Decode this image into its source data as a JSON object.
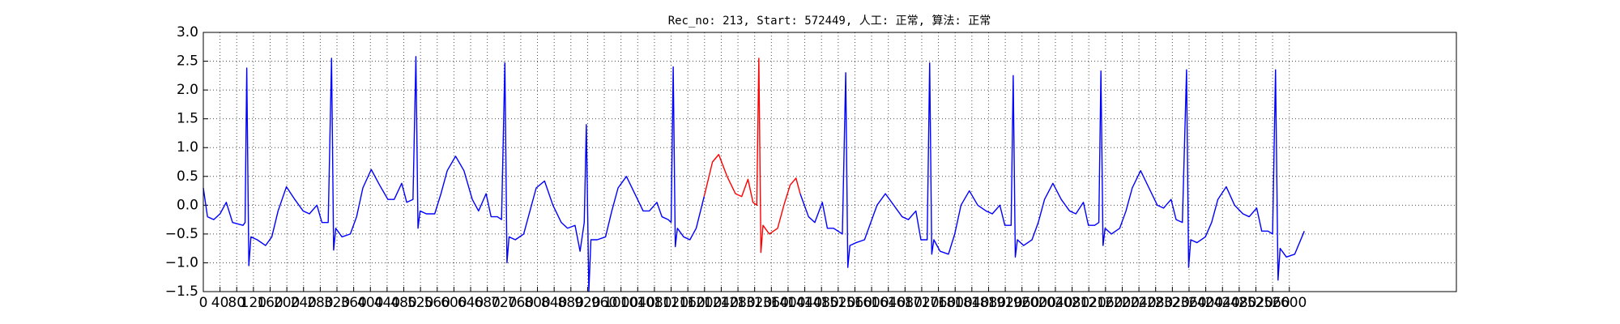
{
  "chart_data": {
    "type": "line",
    "title": "Rec_no: 213, Start: 572449, 人工: 正常, 算法: 正常",
    "xlim": [
      0,
      3000
    ],
    "ylim": [
      -1.5,
      3
    ],
    "xticks": [
      0,
      40,
      80,
      120,
      160,
      200,
      240,
      280,
      320,
      360,
      400,
      440,
      480,
      520,
      560,
      600,
      640,
      680,
      720,
      760,
      800,
      840,
      880,
      920,
      960,
      1000,
      1040,
      1080,
      1120,
      1160,
      1200,
      1240,
      1280,
      1320,
      1360,
      1400,
      1440,
      1480,
      1520,
      1560,
      1600,
      1640,
      1680,
      1720,
      1760,
      1800,
      1840,
      1880,
      1920,
      1960,
      2000,
      2040,
      2080,
      2120,
      2160,
      2200,
      2240,
      2280,
      2320,
      2360,
      2400,
      2440,
      2480,
      2520,
      2560,
      2600
    ],
    "yticks": [
      {
        "value": -1.5,
        "label": "−1.5"
      },
      {
        "value": -1,
        "label": "−1.0"
      },
      {
        "value": -0.5,
        "label": "−0.5"
      },
      {
        "value": 0,
        "label": "0.0"
      },
      0.5,
      {
        "value": 1,
        "label": "1.0"
      },
      1.5,
      {
        "value": 2,
        "label": "2.0"
      },
      2.5,
      {
        "value": 3,
        "label": "3.0"
      }
    ],
    "grid": true,
    "series": [
      {
        "color": "#0000ff",
        "x": [
          0,
          10,
          25,
          40,
          55,
          70,
          95,
          100,
          104,
          109,
          114,
          129,
          149,
          164,
          179,
          199,
          219,
          239,
          254,
          272,
          284,
          299,
          307,
          312,
          317,
          332,
          352,
          367,
          382,
          402,
          422,
          442,
          457,
          475,
          487,
          502,
          509,
          514,
          519,
          534,
          554,
          569,
          584,
          604,
          624,
          644,
          659,
          677,
          689,
          704,
          714,
          722,
          727,
          732,
          747,
          767,
          782,
          797,
          817,
          837,
          857,
          872,
          890,
          902,
          912,
          917,
          923,
          928,
          943,
          963,
          978,
          993,
          1013,
          1033,
          1053,
          1068,
          1086,
          1098,
          1113,
          1120,
          1125,
          1130,
          1135,
          1150,
          1165,
          1180,
          1199
        ],
        "values": [
          0.3,
          -0.2,
          -0.25,
          -0.15,
          0.05,
          -0.3,
          -0.35,
          -0.3,
          2.38,
          -1.05,
          -0.55,
          -0.6,
          -0.7,
          -0.55,
          -0.1,
          0.32,
          0.1,
          -0.1,
          -0.15,
          0.0,
          -0.3,
          -0.3,
          2.55,
          -0.78,
          -0.4,
          -0.55,
          -0.5,
          -0.2,
          0.3,
          0.62,
          0.35,
          0.1,
          0.1,
          0.38,
          0.05,
          0.1,
          2.58,
          -0.4,
          -0.1,
          -0.15,
          -0.15,
          0.2,
          0.6,
          0.85,
          0.6,
          0.1,
          -0.1,
          0.2,
          -0.2,
          -0.2,
          -0.25,
          2.47,
          -1.0,
          -0.55,
          -0.6,
          -0.5,
          -0.1,
          0.3,
          0.42,
          0.0,
          -0.3,
          -0.4,
          -0.35,
          -0.8,
          -0.3,
          1.4,
          -1.5,
          -0.6,
          -0.6,
          -0.55,
          -0.1,
          0.3,
          0.5,
          0.2,
          -0.1,
          -0.1,
          0.05,
          -0.2,
          -0.25,
          -0.3,
          2.4,
          -0.72,
          -0.4,
          -0.55,
          -0.6,
          -0.4,
          0.15
        ]
      },
      {
        "color": "#ff0000",
        "x": [
          1199,
          1219,
          1234,
          1254,
          1274,
          1289,
          1304,
          1316,
          1325,
          1330,
          1335,
          1340,
          1355,
          1375,
          1390,
          1405,
          1419,
          1429
        ],
        "values": [
          0.15,
          0.75,
          0.88,
          0.5,
          0.2,
          0.15,
          0.45,
          0.05,
          0.0,
          2.55,
          -0.82,
          -0.35,
          -0.5,
          -0.4,
          0.0,
          0.35,
          0.47,
          0.2
        ]
      },
      {
        "color": "#0000ff",
        "x": [
          1429,
          1449,
          1464,
          1482,
          1494,
          1509,
          1530,
          1538,
          1543,
          1548,
          1563,
          1583,
          1598,
          1613,
          1633,
          1653,
          1673,
          1688,
          1706,
          1718,
          1733,
          1739,
          1744,
          1749,
          1764,
          1784,
          1799,
          1814,
          1834,
          1854,
          1874,
          1889,
          1907,
          1919,
          1934,
          1939,
          1944,
          1949,
          1964,
          1984,
          1999,
          2014,
          2034,
          2054,
          2074,
          2089,
          2107,
          2119,
          2134,
          2144,
          2149,
          2154,
          2159,
          2174,
          2194,
          2209,
          2224,
          2244,
          2264,
          2284,
          2299,
          2317,
          2329,
          2344,
          2354,
          2359,
          2364,
          2379,
          2399,
          2414,
          2429,
          2449,
          2469,
          2489,
          2504,
          2522,
          2534,
          2549,
          2560,
          2567,
          2573,
          2578,
          2593,
          2613,
          2636
        ],
        "values": [
          0.2,
          -0.2,
          -0.3,
          0.05,
          -0.4,
          -0.4,
          -0.5,
          2.3,
          -1.08,
          -0.7,
          -0.65,
          -0.6,
          -0.3,
          0.0,
          0.2,
          0.0,
          -0.2,
          -0.25,
          -0.1,
          -0.6,
          -0.6,
          2.47,
          -0.85,
          -0.6,
          -0.8,
          -0.85,
          -0.5,
          0.0,
          0.25,
          0.0,
          -0.1,
          -0.15,
          0.0,
          -0.35,
          -0.35,
          2.25,
          -0.9,
          -0.6,
          -0.7,
          -0.6,
          -0.3,
          0.1,
          0.38,
          0.1,
          -0.1,
          -0.15,
          0.05,
          -0.35,
          -0.35,
          -0.3,
          2.33,
          -0.7,
          -0.4,
          -0.5,
          -0.4,
          -0.1,
          0.3,
          0.6,
          0.3,
          0.0,
          -0.05,
          0.1,
          -0.25,
          -0.3,
          2.35,
          -1.08,
          -0.6,
          -0.65,
          -0.55,
          -0.3,
          0.1,
          0.32,
          0.0,
          -0.15,
          -0.2,
          -0.05,
          -0.45,
          -0.45,
          -0.5,
          2.35,
          -1.3,
          -0.75,
          -0.9,
          -0.85,
          -0.45
        ]
      }
    ]
  }
}
